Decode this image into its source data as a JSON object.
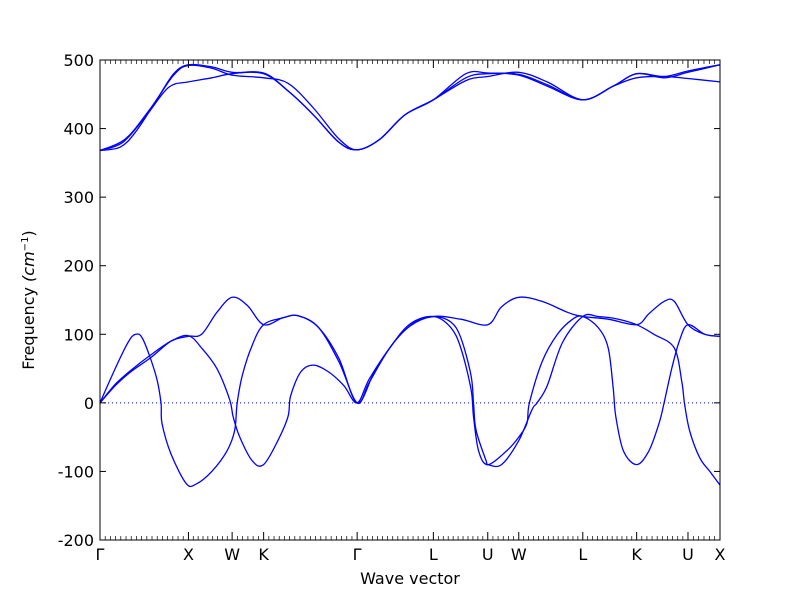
{
  "chart_data": {
    "type": "line",
    "title": "",
    "xlabel": "Wave vector",
    "ylabel": "Frequency (cm⁻¹)",
    "ylabel_main": "Frequency ",
    "ylabel_unit": "(cm",
    "ylabel_exp": "−1",
    "ylabel_close": ")",
    "ylim": [
      -200,
      500
    ],
    "yticks": [
      -200,
      -100,
      0,
      100,
      200,
      300,
      400,
      500
    ],
    "xlim": [
      0,
      12.2
    ],
    "grid": false,
    "legend": "none",
    "line_color": "#0000ff",
    "zero_line": {
      "y": 0,
      "style": "dotted",
      "color": "#0000ff"
    },
    "high_symmetry_points": [
      {
        "label": "Γ",
        "x": 0.0
      },
      {
        "label": "X",
        "x": 1.74
      },
      {
        "label": "W",
        "x": 2.6
      },
      {
        "label": "K",
        "x": 3.22
      },
      {
        "label": "Γ",
        "x": 5.06
      },
      {
        "label": "L",
        "x": 6.56
      },
      {
        "label": "U",
        "x": 7.63
      },
      {
        "label": "W",
        "x": 8.24
      },
      {
        "label": "L",
        "x": 9.5
      },
      {
        "label": "K",
        "x": 10.56
      },
      {
        "label": "U",
        "x": 11.57
      },
      {
        "label": "X",
        "x": 12.2
      }
    ],
    "series": [
      {
        "values": [
          [
            0,
            368
          ],
          [
            0.5,
            385
          ],
          [
            1.0,
            430
          ],
          [
            1.45,
            478
          ],
          [
            1.74,
            492
          ],
          [
            2.2,
            488
          ],
          [
            2.6,
            478
          ],
          [
            3.22,
            474
          ],
          [
            3.7,
            466
          ],
          [
            4.2,
            430
          ],
          [
            4.7,
            385
          ],
          [
            5.06,
            369
          ],
          [
            5.5,
            384
          ],
          [
            6.0,
            420
          ],
          [
            6.56,
            442
          ],
          [
            7.2,
            474
          ],
          [
            7.63,
            480
          ],
          [
            8.24,
            479
          ],
          [
            8.8,
            464
          ],
          [
            9.5,
            442
          ],
          [
            10.1,
            462
          ],
          [
            10.56,
            480
          ],
          [
            11.1,
            474
          ],
          [
            11.57,
            482
          ],
          [
            12.2,
            493
          ]
        ]
      },
      {
        "values": [
          [
            0,
            368
          ],
          [
            0.45,
            380
          ],
          [
            0.9,
            418
          ],
          [
            1.35,
            460
          ],
          [
            1.74,
            468
          ],
          [
            2.2,
            474
          ],
          [
            2.6,
            480
          ],
          [
            3.22,
            481
          ],
          [
            3.7,
            455
          ],
          [
            4.2,
            420
          ],
          [
            4.7,
            380
          ],
          [
            5.06,
            369
          ],
          [
            5.5,
            384
          ],
          [
            6.0,
            420
          ],
          [
            6.56,
            442
          ],
          [
            7.2,
            470
          ],
          [
            7.63,
            476
          ],
          [
            8.24,
            482
          ],
          [
            8.8,
            468
          ],
          [
            9.5,
            442
          ],
          [
            10.1,
            462
          ],
          [
            10.56,
            474
          ],
          [
            11.1,
            476
          ],
          [
            11.57,
            473
          ],
          [
            12.2,
            468
          ]
        ]
      },
      {
        "values": [
          [
            0,
            368
          ],
          [
            0.4,
            373
          ],
          [
            0.7,
            395
          ],
          [
            1.1,
            440
          ],
          [
            1.45,
            480
          ],
          [
            1.74,
            493
          ],
          [
            2.2,
            490
          ],
          [
            2.6,
            482
          ],
          [
            3.22,
            480
          ],
          [
            3.7,
            455
          ],
          [
            4.2,
            420
          ],
          [
            4.7,
            380
          ],
          [
            5.06,
            369
          ],
          [
            5.5,
            384
          ],
          [
            6.0,
            420
          ],
          [
            6.56,
            442
          ],
          [
            7.2,
            480
          ],
          [
            7.63,
            481
          ],
          [
            8.24,
            478
          ],
          [
            8.8,
            462
          ],
          [
            9.5,
            442
          ],
          [
            10.1,
            462
          ],
          [
            10.56,
            480
          ],
          [
            11.1,
            476
          ],
          [
            11.57,
            484
          ],
          [
            12.2,
            493
          ]
        ]
      },
      {
        "values": [
          [
            0,
            0
          ],
          [
            0.3,
            25
          ],
          [
            0.6,
            45
          ],
          [
            1.0,
            66
          ],
          [
            1.4,
            90
          ],
          [
            1.74,
            97
          ],
          [
            2.0,
            100
          ],
          [
            2.3,
            132
          ],
          [
            2.6,
            154
          ],
          [
            2.9,
            142
          ],
          [
            3.22,
            114
          ],
          [
            3.6,
            124
          ],
          [
            3.9,
            127
          ],
          [
            4.3,
            110
          ],
          [
            4.7,
            60
          ],
          [
            5.06,
            0
          ],
          [
            5.3,
            30
          ],
          [
            5.7,
            80
          ],
          [
            6.1,
            112
          ],
          [
            6.56,
            126
          ],
          [
            7.1,
            122
          ],
          [
            7.63,
            114
          ],
          [
            7.9,
            140
          ],
          [
            8.24,
            154
          ],
          [
            8.7,
            148
          ],
          [
            9.2,
            132
          ],
          [
            9.5,
            126
          ],
          [
            10.0,
            122
          ],
          [
            10.56,
            114
          ],
          [
            10.8,
            130
          ],
          [
            11.1,
            148
          ],
          [
            11.3,
            148
          ],
          [
            11.57,
            114
          ],
          [
            11.9,
            100
          ],
          [
            12.2,
            97
          ]
        ]
      },
      {
        "values": [
          [
            0,
            0
          ],
          [
            0.3,
            27
          ],
          [
            0.6,
            47
          ],
          [
            1.0,
            70
          ],
          [
            1.4,
            90
          ],
          [
            1.74,
            98
          ],
          [
            2.0,
            80
          ],
          [
            2.3,
            50
          ],
          [
            2.55,
            5
          ],
          [
            2.62,
            -20
          ],
          [
            2.75,
            -50
          ],
          [
            3.0,
            -85
          ],
          [
            3.22,
            -90
          ],
          [
            3.5,
            -55
          ],
          [
            3.7,
            -20
          ],
          [
            3.75,
            10
          ],
          [
            3.95,
            45
          ],
          [
            4.2,
            55
          ],
          [
            4.5,
            45
          ],
          [
            4.8,
            25
          ],
          [
            5.06,
            0
          ],
          [
            5.3,
            35
          ],
          [
            5.7,
            80
          ],
          [
            6.1,
            115
          ],
          [
            6.56,
            126
          ],
          [
            6.9,
            110
          ],
          [
            7.1,
            80
          ],
          [
            7.3,
            20
          ],
          [
            7.35,
            -20
          ],
          [
            7.45,
            -70
          ],
          [
            7.63,
            -90
          ],
          [
            8.0,
            -70
          ],
          [
            8.24,
            -50
          ],
          [
            8.4,
            -30
          ],
          [
            8.45,
            0
          ],
          [
            8.7,
            60
          ],
          [
            9.0,
            100
          ],
          [
            9.3,
            122
          ],
          [
            9.5,
            126
          ],
          [
            9.8,
            110
          ],
          [
            10.0,
            80
          ],
          [
            10.1,
            20
          ],
          [
            10.15,
            -20
          ],
          [
            10.3,
            -70
          ],
          [
            10.56,
            -90
          ],
          [
            10.8,
            -70
          ],
          [
            11.0,
            -30
          ],
          [
            11.1,
            0
          ],
          [
            11.25,
            50
          ],
          [
            11.4,
            90
          ],
          [
            11.57,
            114
          ],
          [
            11.9,
            100
          ],
          [
            12.2,
            97
          ]
        ]
      },
      {
        "values": [
          [
            0,
            0
          ],
          [
            0.3,
            50
          ],
          [
            0.55,
            88
          ],
          [
            0.7,
            100
          ],
          [
            0.85,
            92
          ],
          [
            1.1,
            40
          ],
          [
            1.2,
            0
          ],
          [
            1.22,
            -30
          ],
          [
            1.4,
            -75
          ],
          [
            1.7,
            -118
          ],
          [
            1.9,
            -118
          ],
          [
            2.2,
            -100
          ],
          [
            2.5,
            -70
          ],
          [
            2.65,
            -40
          ],
          [
            2.7,
            0
          ],
          [
            2.8,
            40
          ],
          [
            3.0,
            85
          ],
          [
            3.22,
            114
          ],
          [
            3.6,
            124
          ],
          [
            3.9,
            127
          ],
          [
            4.3,
            110
          ],
          [
            4.7,
            65
          ],
          [
            5.06,
            0
          ],
          [
            5.4,
            45
          ],
          [
            5.8,
            90
          ],
          [
            6.2,
            118
          ],
          [
            6.56,
            126
          ],
          [
            6.9,
            118
          ],
          [
            7.1,
            95
          ],
          [
            7.3,
            40
          ],
          [
            7.35,
            0
          ],
          [
            7.4,
            -40
          ],
          [
            7.6,
            -85
          ],
          [
            7.63,
            -90
          ],
          [
            7.9,
            -90
          ],
          [
            8.24,
            -55
          ],
          [
            8.5,
            -10
          ],
          [
            8.6,
            0
          ],
          [
            8.8,
            25
          ],
          [
            9.1,
            88
          ],
          [
            9.5,
            126
          ],
          [
            9.8,
            126
          ],
          [
            10.2,
            122
          ],
          [
            10.56,
            114
          ],
          [
            10.9,
            100
          ],
          [
            11.3,
            80
          ],
          [
            11.45,
            30
          ],
          [
            11.5,
            0
          ],
          [
            11.6,
            -40
          ],
          [
            11.8,
            -80
          ],
          [
            12.0,
            -100
          ],
          [
            12.2,
            -120
          ]
        ]
      }
    ]
  }
}
